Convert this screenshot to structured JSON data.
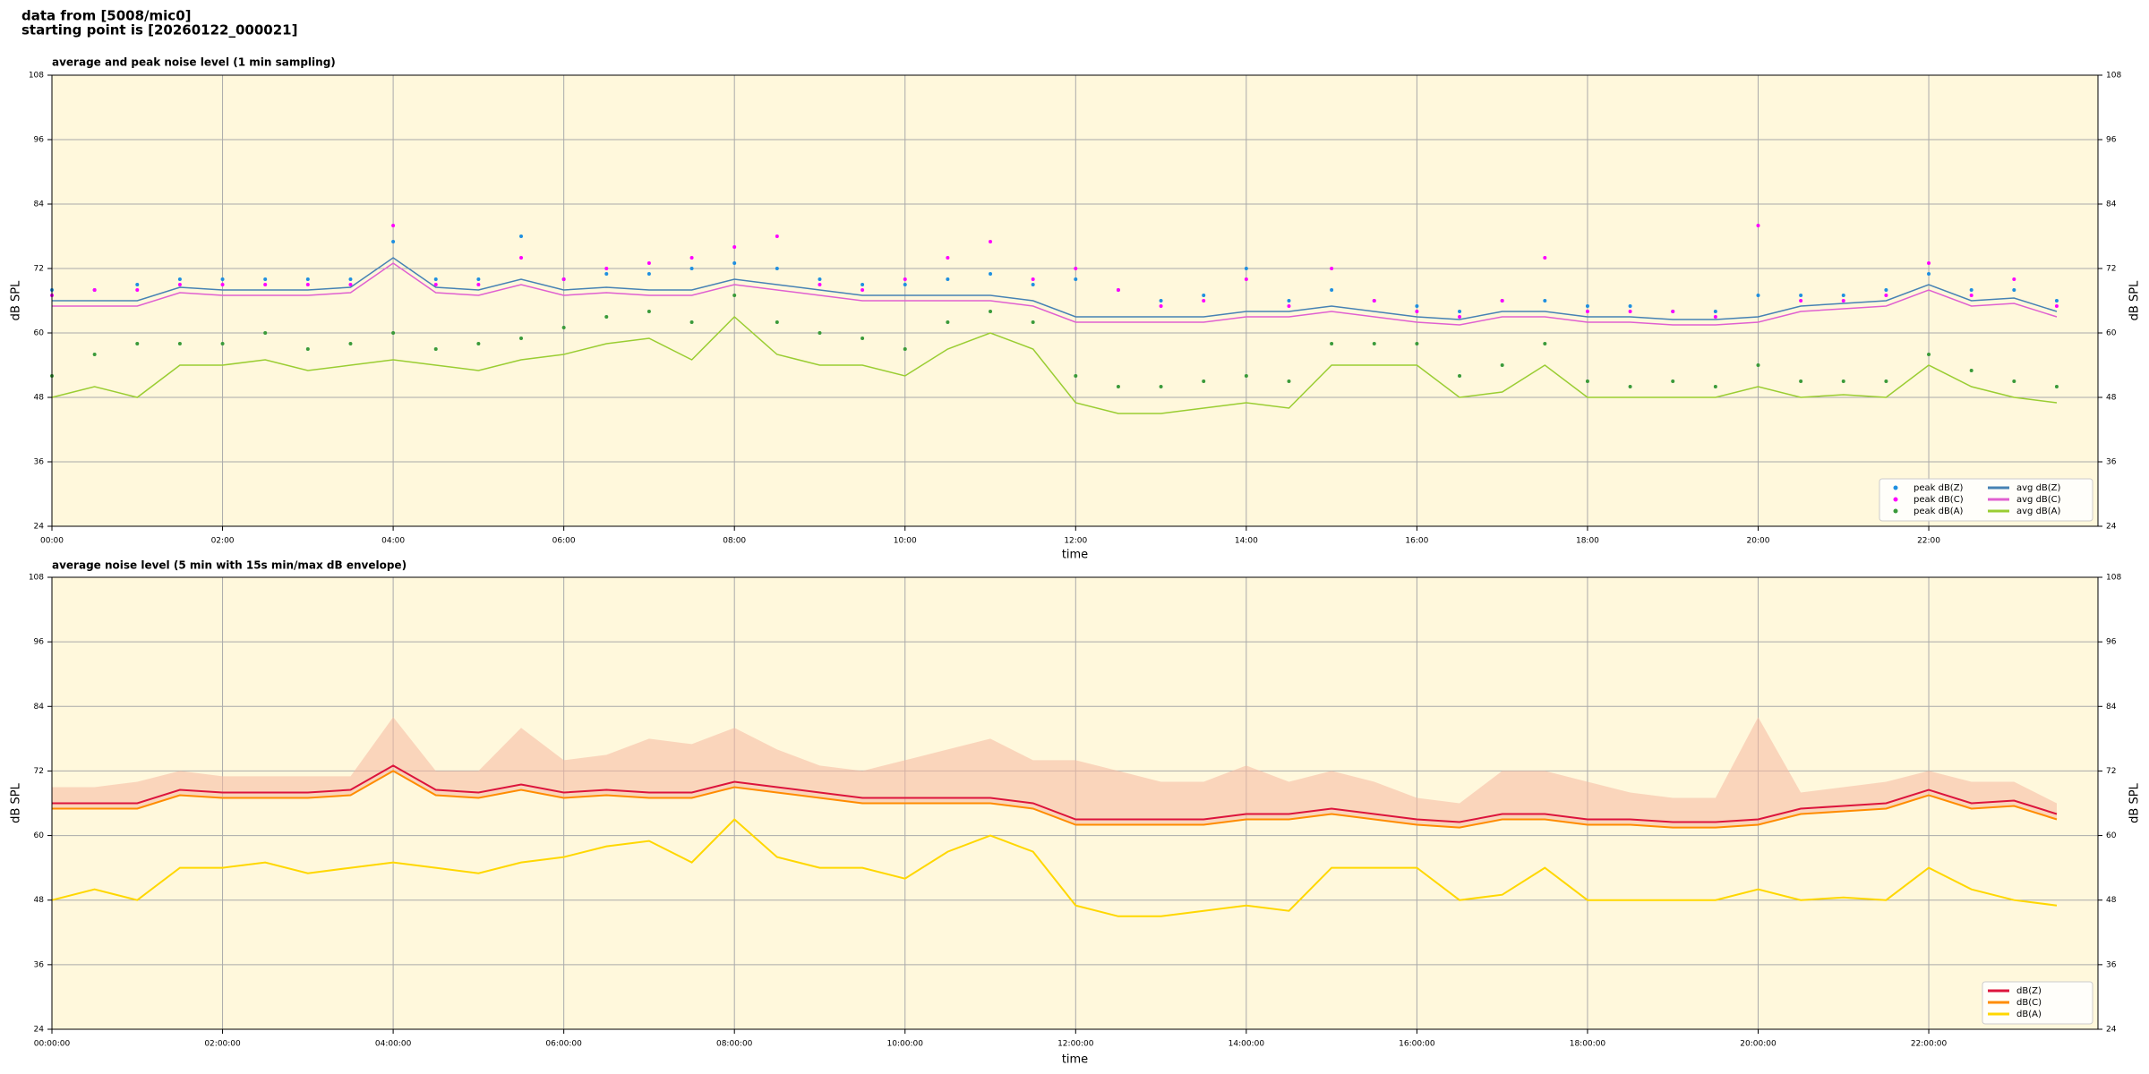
{
  "header": {
    "lines": [
      "data from [5008/mic0]",
      "starting point is [20260122_000021]"
    ]
  },
  "chart_data": [
    {
      "type": "line",
      "title": "average and peak noise level (1 min sampling)",
      "x_label": "time",
      "y_label": "dB SPL",
      "x": [
        "00:00",
        "00:30",
        "01:00",
        "01:30",
        "02:00",
        "02:30",
        "03:00",
        "03:30",
        "04:00",
        "04:30",
        "05:00",
        "05:30",
        "06:00",
        "06:30",
        "07:00",
        "07:30",
        "08:00",
        "08:30",
        "09:00",
        "09:30",
        "10:00",
        "10:30",
        "11:00",
        "11:30",
        "12:00",
        "12:30",
        "13:00",
        "13:30",
        "14:00",
        "14:30",
        "15:00",
        "15:30",
        "16:00",
        "16:30",
        "17:00",
        "17:30",
        "18:00",
        "18:30",
        "19:00",
        "19:30",
        "20:00",
        "20:30",
        "21:00",
        "21:30",
        "22:00",
        "22:30",
        "23:00",
        "23:30"
      ],
      "xlim": [
        "00:00",
        "23:59"
      ],
      "xticks": [
        "00:00",
        "02:00",
        "04:00",
        "06:00",
        "08:00",
        "10:00",
        "12:00",
        "14:00",
        "16:00",
        "18:00",
        "20:00",
        "22:00"
      ],
      "ylim": [
        24,
        108
      ],
      "yticks": [
        24,
        36,
        48,
        60,
        72,
        84,
        96,
        108
      ],
      "grid": true,
      "legend": "lower right",
      "series": [
        {
          "name": "peak dB(Z)",
          "style": "dots",
          "color": "#1f8fe0",
          "values": [
            68,
            68,
            69,
            70,
            70,
            70,
            70,
            70,
            77,
            70,
            70,
            78,
            70,
            71,
            71,
            72,
            73,
            72,
            70,
            69,
            69,
            70,
            71,
            69,
            70,
            68,
            66,
            67,
            72,
            66,
            68,
            66,
            65,
            64,
            66,
            66,
            65,
            65,
            64,
            64,
            67,
            67,
            67,
            68,
            71,
            68,
            68,
            66
          ]
        },
        {
          "name": "peak dB(C)",
          "style": "dots",
          "color": "#ff00ff",
          "values": [
            67,
            68,
            68,
            69,
            69,
            69,
            69,
            69,
            80,
            69,
            69,
            74,
            70,
            72,
            73,
            74,
            76,
            78,
            69,
            68,
            70,
            74,
            77,
            70,
            72,
            68,
            65,
            66,
            70,
            65,
            72,
            66,
            64,
            63,
            66,
            74,
            64,
            64,
            64,
            63,
            80,
            66,
            66,
            67,
            73,
            67,
            70,
            65
          ]
        },
        {
          "name": "peak dB(A)",
          "style": "dots",
          "color": "#3a9a3a",
          "values": [
            52,
            56,
            58,
            58,
            58,
            60,
            57,
            58,
            60,
            57,
            58,
            59,
            61,
            63,
            64,
            62,
            67,
            62,
            60,
            59,
            57,
            62,
            64,
            62,
            52,
            50,
            50,
            51,
            52,
            51,
            58,
            58,
            58,
            52,
            54,
            58,
            51,
            50,
            51,
            50,
            54,
            51,
            51,
            51,
            56,
            53,
            51,
            50
          ]
        },
        {
          "name": "avg dB(Z)",
          "style": "line",
          "color": "#4682b4",
          "values": [
            66,
            66,
            66,
            68.5,
            68,
            68,
            68,
            68.5,
            74,
            68.5,
            68,
            70,
            68,
            68.5,
            68,
            68,
            70,
            69,
            68,
            67,
            67,
            67,
            67,
            66,
            63,
            63,
            63,
            63,
            64,
            64,
            65,
            64,
            63,
            62.5,
            64,
            64,
            63,
            63,
            62.5,
            62.5,
            63,
            65,
            65.5,
            66,
            69,
            66,
            66.5,
            64
          ]
        },
        {
          "name": "avg dB(C)",
          "style": "line",
          "color": "#e060d0",
          "values": [
            65,
            65,
            65,
            67.5,
            67,
            67,
            67,
            67.5,
            73,
            67.5,
            67,
            69,
            67,
            67.5,
            67,
            67,
            69,
            68,
            67,
            66,
            66,
            66,
            66,
            65,
            62,
            62,
            62,
            62,
            63,
            63,
            64,
            63,
            62,
            61.5,
            63,
            63,
            62,
            62,
            61.5,
            61.5,
            62,
            64,
            64.5,
            65,
            68,
            65,
            65.5,
            63
          ]
        },
        {
          "name": "avg dB(A)",
          "style": "line",
          "color": "#9acd32",
          "values": [
            48,
            50,
            48,
            54,
            54,
            55,
            53,
            54,
            55,
            54,
            53,
            55,
            56,
            58,
            59,
            55,
            63,
            56,
            54,
            54,
            52,
            57,
            60,
            57,
            47,
            45,
            45,
            46,
            47,
            46,
            54,
            54,
            54,
            48,
            49,
            54,
            48,
            48,
            48,
            48,
            50,
            48,
            48.5,
            48,
            54,
            50,
            48,
            47
          ]
        }
      ]
    },
    {
      "type": "line",
      "title": "average noise level (5 min with 15s min/max dB envelope)",
      "x_label": "time",
      "y_label": "dB SPL",
      "x": [
        "00:00:00",
        "00:30:00",
        "01:00:00",
        "01:30:00",
        "02:00:00",
        "02:30:00",
        "03:00:00",
        "03:30:00",
        "04:00:00",
        "04:30:00",
        "05:00:00",
        "05:30:00",
        "06:00:00",
        "06:30:00",
        "07:00:00",
        "07:30:00",
        "08:00:00",
        "08:30:00",
        "09:00:00",
        "09:30:00",
        "10:00:00",
        "10:30:00",
        "11:00:00",
        "11:30:00",
        "12:00:00",
        "12:30:00",
        "13:00:00",
        "13:30:00",
        "14:00:00",
        "14:30:00",
        "15:00:00",
        "15:30:00",
        "16:00:00",
        "16:30:00",
        "17:00:00",
        "17:30:00",
        "18:00:00",
        "18:30:00",
        "19:00:00",
        "19:30:00",
        "20:00:00",
        "20:30:00",
        "21:00:00",
        "21:30:00",
        "22:00:00",
        "22:30:00",
        "23:00:00",
        "23:30:00"
      ],
      "xlim": [
        "00:00:00",
        "23:59:00"
      ],
      "xticks": [
        "00:00:00",
        "02:00:00",
        "04:00:00",
        "06:00:00",
        "08:00:00",
        "10:00:00",
        "12:00:00",
        "14:00:00",
        "16:00:00",
        "18:00:00",
        "20:00:00",
        "22:00:00"
      ],
      "ylim": [
        24,
        108
      ],
      "yticks": [
        24,
        36,
        48,
        60,
        72,
        84,
        96,
        108
      ],
      "grid": true,
      "legend": "lower right",
      "envelope": {
        "color": "#f5b8a0",
        "upper": [
          69,
          69,
          70,
          72,
          71,
          71,
          71,
          71,
          82,
          72,
          72,
          80,
          74,
          75,
          78,
          77,
          80,
          76,
          73,
          72,
          74,
          76,
          78,
          74,
          74,
          72,
          70,
          70,
          73,
          70,
          72,
          70,
          67,
          66,
          72,
          72,
          70,
          68,
          67,
          67,
          82,
          68,
          69,
          70,
          72,
          70,
          70,
          66
        ]
      },
      "series": [
        {
          "name": "dB(Z)",
          "style": "line",
          "color": "#dc143c",
          "values": [
            66,
            66,
            66,
            68.5,
            68,
            68,
            68,
            68.5,
            73,
            68.5,
            68,
            69.5,
            68,
            68.5,
            68,
            68,
            70,
            69,
            68,
            67,
            67,
            67,
            67,
            66,
            63,
            63,
            63,
            63,
            64,
            64,
            65,
            64,
            63,
            62.5,
            64,
            64,
            63,
            63,
            62.5,
            62.5,
            63,
            65,
            65.5,
            66,
            68.5,
            66,
            66.5,
            64
          ]
        },
        {
          "name": "dB(C)",
          "style": "line",
          "color": "#ff8c00",
          "values": [
            65,
            65,
            65,
            67.5,
            67,
            67,
            67,
            67.5,
            72,
            67.5,
            67,
            68.5,
            67,
            67.5,
            67,
            67,
            69,
            68,
            67,
            66,
            66,
            66,
            66,
            65,
            62,
            62,
            62,
            62,
            63,
            63,
            64,
            63,
            62,
            61.5,
            63,
            63,
            62,
            62,
            61.5,
            61.5,
            62,
            64,
            64.5,
            65,
            67.5,
            65,
            65.5,
            63
          ]
        },
        {
          "name": "dB(A)",
          "style": "line",
          "color": "#ffd700",
          "values": [
            48,
            50,
            48,
            54,
            54,
            55,
            53,
            54,
            55,
            54,
            53,
            55,
            56,
            58,
            59,
            55,
            63,
            56,
            54,
            54,
            52,
            57,
            60,
            57,
            47,
            45,
            45,
            46,
            47,
            46,
            54,
            54,
            54,
            48,
            49,
            54,
            48,
            48,
            48,
            48,
            50,
            48,
            48.5,
            48,
            54,
            50,
            48,
            47
          ]
        }
      ]
    }
  ]
}
